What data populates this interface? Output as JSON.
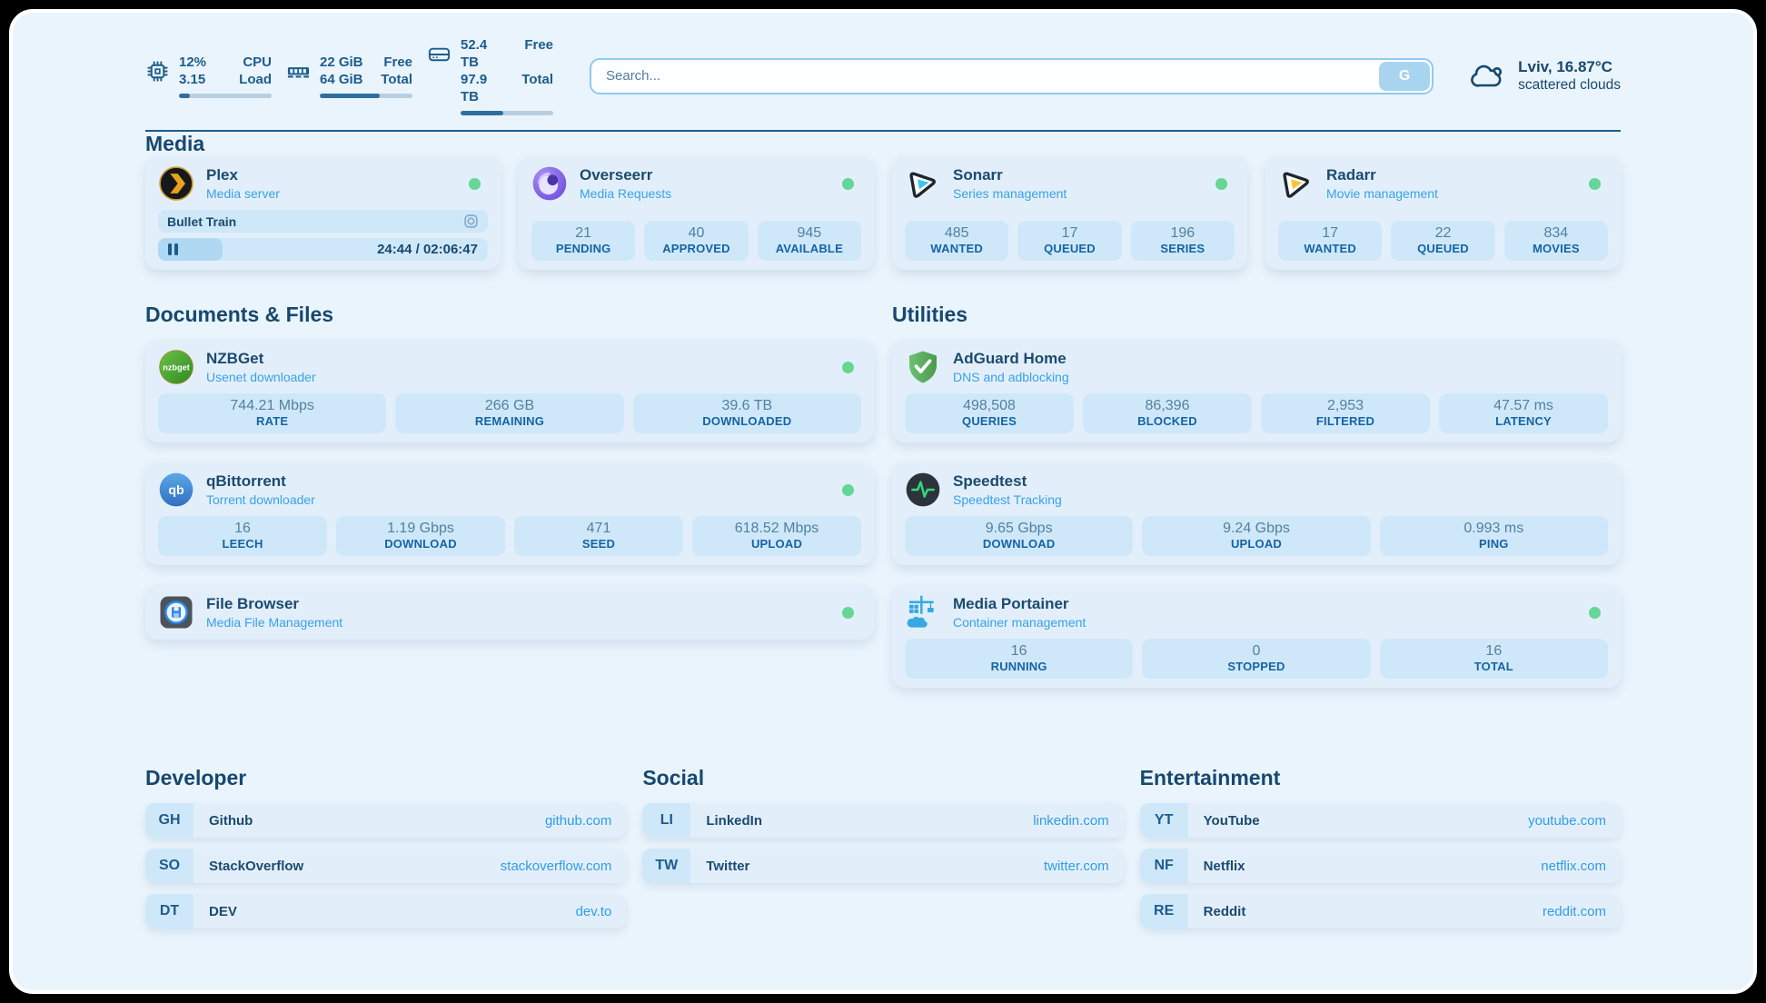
{
  "topbar": {
    "resources": [
      {
        "icon": "cpu-icon",
        "rows": [
          {
            "value": "12%",
            "label": "CPU"
          },
          {
            "value": "3.15",
            "label": "Load"
          }
        ],
        "progress_pct": 12
      },
      {
        "icon": "memory-icon",
        "rows": [
          {
            "value": "22 GiB",
            "label": "Free"
          },
          {
            "value": "64 GiB",
            "label": "Total"
          }
        ],
        "progress_pct": 65
      },
      {
        "icon": "disk-icon",
        "rows": [
          {
            "value": "52.4 TB",
            "label": "Free"
          },
          {
            "value": "97.9 TB",
            "label": "Total"
          }
        ],
        "progress_pct": 46
      }
    ],
    "search": {
      "placeholder": "Search...",
      "button_label": "G"
    },
    "weather": {
      "location": "Lviv, 16.87°C",
      "condition": "scattered clouds"
    }
  },
  "sections": {
    "media": {
      "title": "Media"
    },
    "documents": {
      "title": "Documents & Files"
    },
    "utilities": {
      "title": "Utilities"
    }
  },
  "services": {
    "plex": {
      "name": "Plex",
      "desc": "Media server",
      "status": "online",
      "now_playing": {
        "title": "Bullet Train",
        "time": "24:44 / 02:06:47",
        "progress_pct": 19.5
      }
    },
    "overseerr": {
      "name": "Overseerr",
      "desc": "Media Requests",
      "status": "online",
      "stats": [
        {
          "value": "21",
          "label": "PENDING"
        },
        {
          "value": "40",
          "label": "APPROVED"
        },
        {
          "value": "945",
          "label": "AVAILABLE"
        }
      ]
    },
    "sonarr": {
      "name": "Sonarr",
      "desc": "Series management",
      "status": "online",
      "stats": [
        {
          "value": "485",
          "label": "WANTED"
        },
        {
          "value": "17",
          "label": "QUEUED"
        },
        {
          "value": "196",
          "label": "SERIES"
        }
      ]
    },
    "radarr": {
      "name": "Radarr",
      "desc": "Movie management",
      "status": "online",
      "stats": [
        {
          "value": "17",
          "label": "WANTED"
        },
        {
          "value": "22",
          "label": "QUEUED"
        },
        {
          "value": "834",
          "label": "MOVIES"
        }
      ]
    },
    "nzbget": {
      "name": "NZBGet",
      "desc": "Usenet downloader",
      "status": "online",
      "stats": [
        {
          "value": "744.21 Mbps",
          "label": "RATE"
        },
        {
          "value": "266 GB",
          "label": "REMAINING"
        },
        {
          "value": "39.6 TB",
          "label": "DOWNLOADED"
        }
      ]
    },
    "qbittorrent": {
      "name": "qBittorrent",
      "desc": "Torrent downloader",
      "status": "online",
      "stats": [
        {
          "value": "16",
          "label": "LEECH"
        },
        {
          "value": "1.19 Gbps",
          "label": "DOWNLOAD"
        },
        {
          "value": "471",
          "label": "SEED"
        },
        {
          "value": "618.52 Mbps",
          "label": "UPLOAD"
        }
      ]
    },
    "filebrowser": {
      "name": "File Browser",
      "desc": "Media File Management",
      "status": "online"
    },
    "adguard": {
      "name": "AdGuard Home",
      "desc": "DNS and adblocking",
      "stats": [
        {
          "value": "498,508",
          "label": "QUERIES"
        },
        {
          "value": "86,396",
          "label": "BLOCKED"
        },
        {
          "value": "2,953",
          "label": "FILTERED"
        },
        {
          "value": "47.57 ms",
          "label": "LATENCY"
        }
      ]
    },
    "speedtest": {
      "name": "Speedtest",
      "desc": "Speedtest Tracking",
      "stats": [
        {
          "value": "9.65 Gbps",
          "label": "DOWNLOAD"
        },
        {
          "value": "9.24 Gbps",
          "label": "UPLOAD"
        },
        {
          "value": "0.993 ms",
          "label": "PING"
        }
      ]
    },
    "portainer": {
      "name": "Media Portainer",
      "desc": "Container management",
      "status": "online",
      "stats": [
        {
          "value": "16",
          "label": "RUNNING"
        },
        {
          "value": "0",
          "label": "STOPPED"
        },
        {
          "value": "16",
          "label": "TOTAL"
        }
      ]
    }
  },
  "bookmarks": {
    "developer": {
      "title": "Developer",
      "items": [
        {
          "abbr": "GH",
          "name": "Github",
          "url": "github.com"
        },
        {
          "abbr": "SO",
          "name": "StackOverflow",
          "url": "stackoverflow.com"
        },
        {
          "abbr": "DT",
          "name": "DEV",
          "url": "dev.to"
        }
      ]
    },
    "social": {
      "title": "Social",
      "items": [
        {
          "abbr": "LI",
          "name": "LinkedIn",
          "url": "linkedin.com"
        },
        {
          "abbr": "TW",
          "name": "Twitter",
          "url": "twitter.com"
        }
      ]
    },
    "entertainment": {
      "title": "Entertainment",
      "items": [
        {
          "abbr": "YT",
          "name": "YouTube",
          "url": "youtube.com"
        },
        {
          "abbr": "NF",
          "name": "Netflix",
          "url": "netflix.com"
        },
        {
          "abbr": "RE",
          "name": "Reddit",
          "url": "reddit.com"
        }
      ]
    }
  },
  "colors": {
    "accent": "#2f9ce8",
    "status_online": "#65d695",
    "text_primary": "#17486f",
    "text_label": "#1563a5",
    "stat_block_bg": "#cfe8f9",
    "card_bg": "#e2effb",
    "page_bg": "#eaf4fc"
  }
}
